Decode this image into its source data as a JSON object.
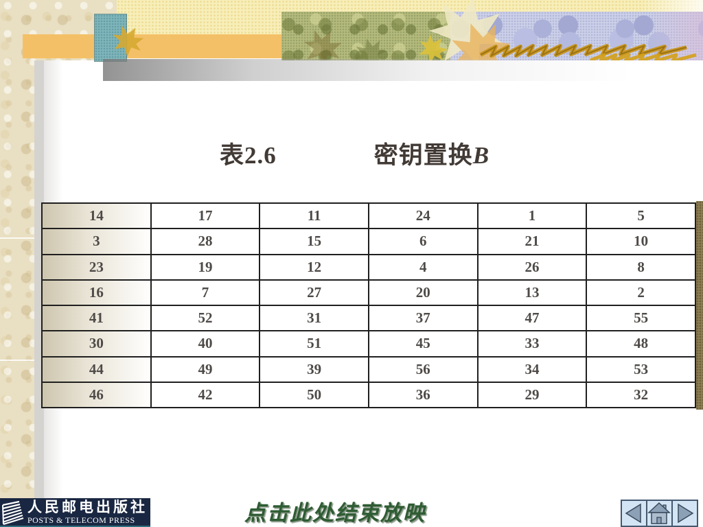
{
  "title": {
    "prefix": "表2.6",
    "caption": "密钥置换",
    "caption_italic": "B"
  },
  "table": {
    "rows": [
      [
        14,
        17,
        11,
        24,
        1,
        5
      ],
      [
        3,
        28,
        15,
        6,
        21,
        10
      ],
      [
        23,
        19,
        12,
        4,
        26,
        8
      ],
      [
        16,
        7,
        27,
        20,
        13,
        2
      ],
      [
        41,
        52,
        31,
        37,
        47,
        55
      ],
      [
        30,
        40,
        51,
        45,
        33,
        48
      ],
      [
        44,
        49,
        39,
        56,
        34,
        53
      ],
      [
        46,
        42,
        50,
        36,
        29,
        32
      ]
    ]
  },
  "footer": {
    "publisher_cn": "人民邮电出版社",
    "publisher_en": "POSTS & TELECOM PRESS",
    "end_show_label": "点击此处结束放映"
  },
  "nav": {
    "previous": "previous slide",
    "home": "home",
    "next": "next slide"
  },
  "colors": {
    "publisher_bar": "#1a2742",
    "nav_button_bg": "#d3e5f4",
    "nav_glyph": "#8da1b6",
    "end_show_text": "#2e5c33",
    "table_border": "#1f1f1f",
    "left_margin_tan": "#e9dfc2",
    "right_edge_olive": "#8d7d52",
    "title_text": "#423a35"
  }
}
